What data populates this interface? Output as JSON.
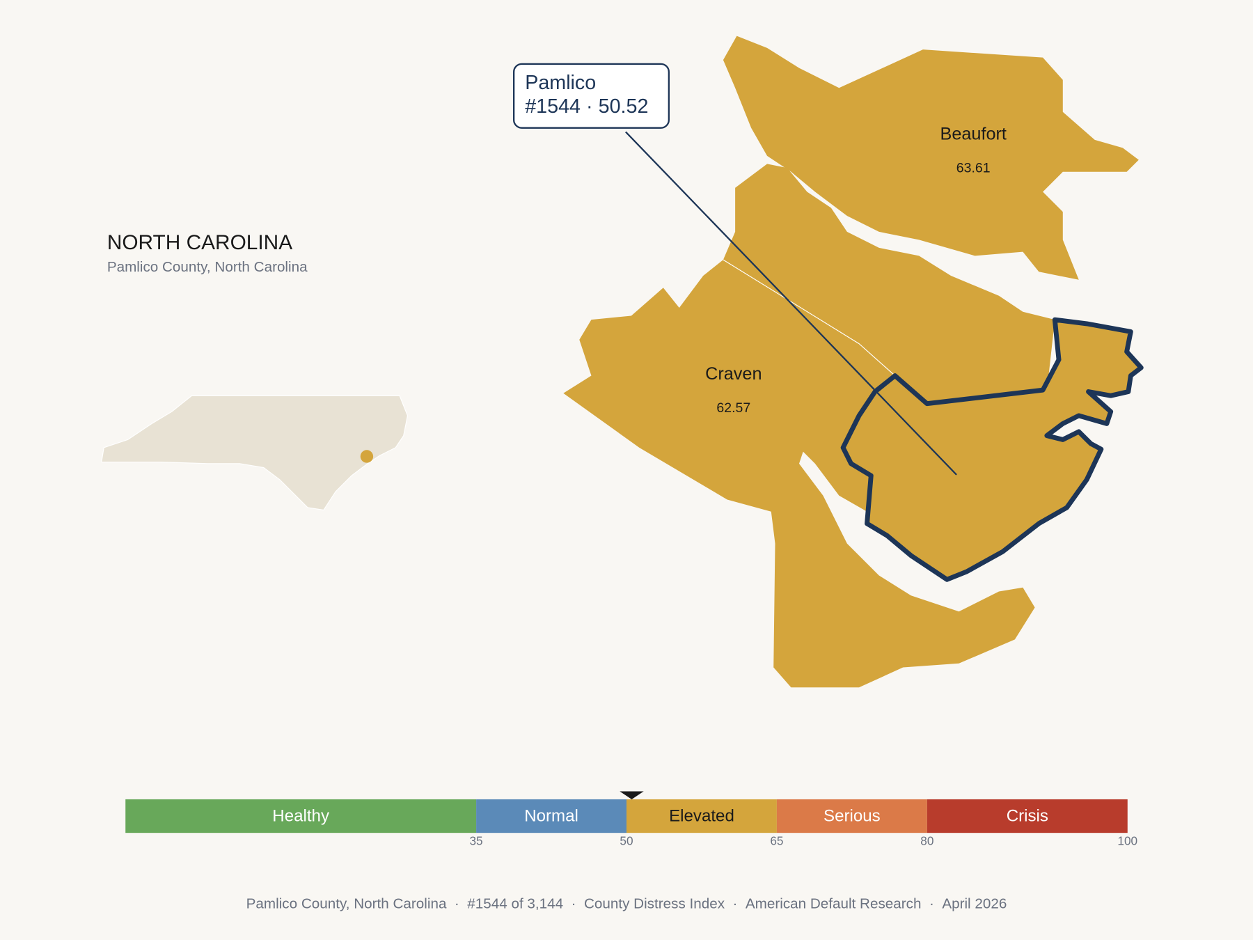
{
  "state_label": "NORTH CAROLINA",
  "subtitle": "Pamlico County, North Carolina",
  "callout": {
    "name": "Pamlico",
    "rank": "#1544",
    "separator": "·",
    "value": 50.52
  },
  "counties": [
    {
      "name": "Beaufort",
      "value": 63.61
    },
    {
      "name": "Craven",
      "value": 62.57
    }
  ],
  "scale": {
    "lim": [
      0,
      100
    ],
    "ticks": [
      35,
      50,
      65,
      80,
      100
    ],
    "bands": [
      {
        "name": "Healthy",
        "color": "#68a85a",
        "text_color": "#ffffff"
      },
      {
        "name": "Normal",
        "color": "#5b8ab8",
        "text_color": "#ffffff"
      },
      {
        "name": "Elevated",
        "color": "#d4a53c",
        "text_color": "#1a1a1a"
      },
      {
        "name": "Serious",
        "color": "#db7a48",
        "text_color": "#ffffff"
      },
      {
        "name": "Crisis",
        "color": "#b83c2c",
        "text_color": "#ffffff"
      }
    ]
  },
  "footer": {
    "separator": "·",
    "items": [
      "Pamlico County, North Carolina",
      "#1544 of 3,144",
      "County Distress Index",
      "American Default Research",
      "April 2026"
    ]
  }
}
